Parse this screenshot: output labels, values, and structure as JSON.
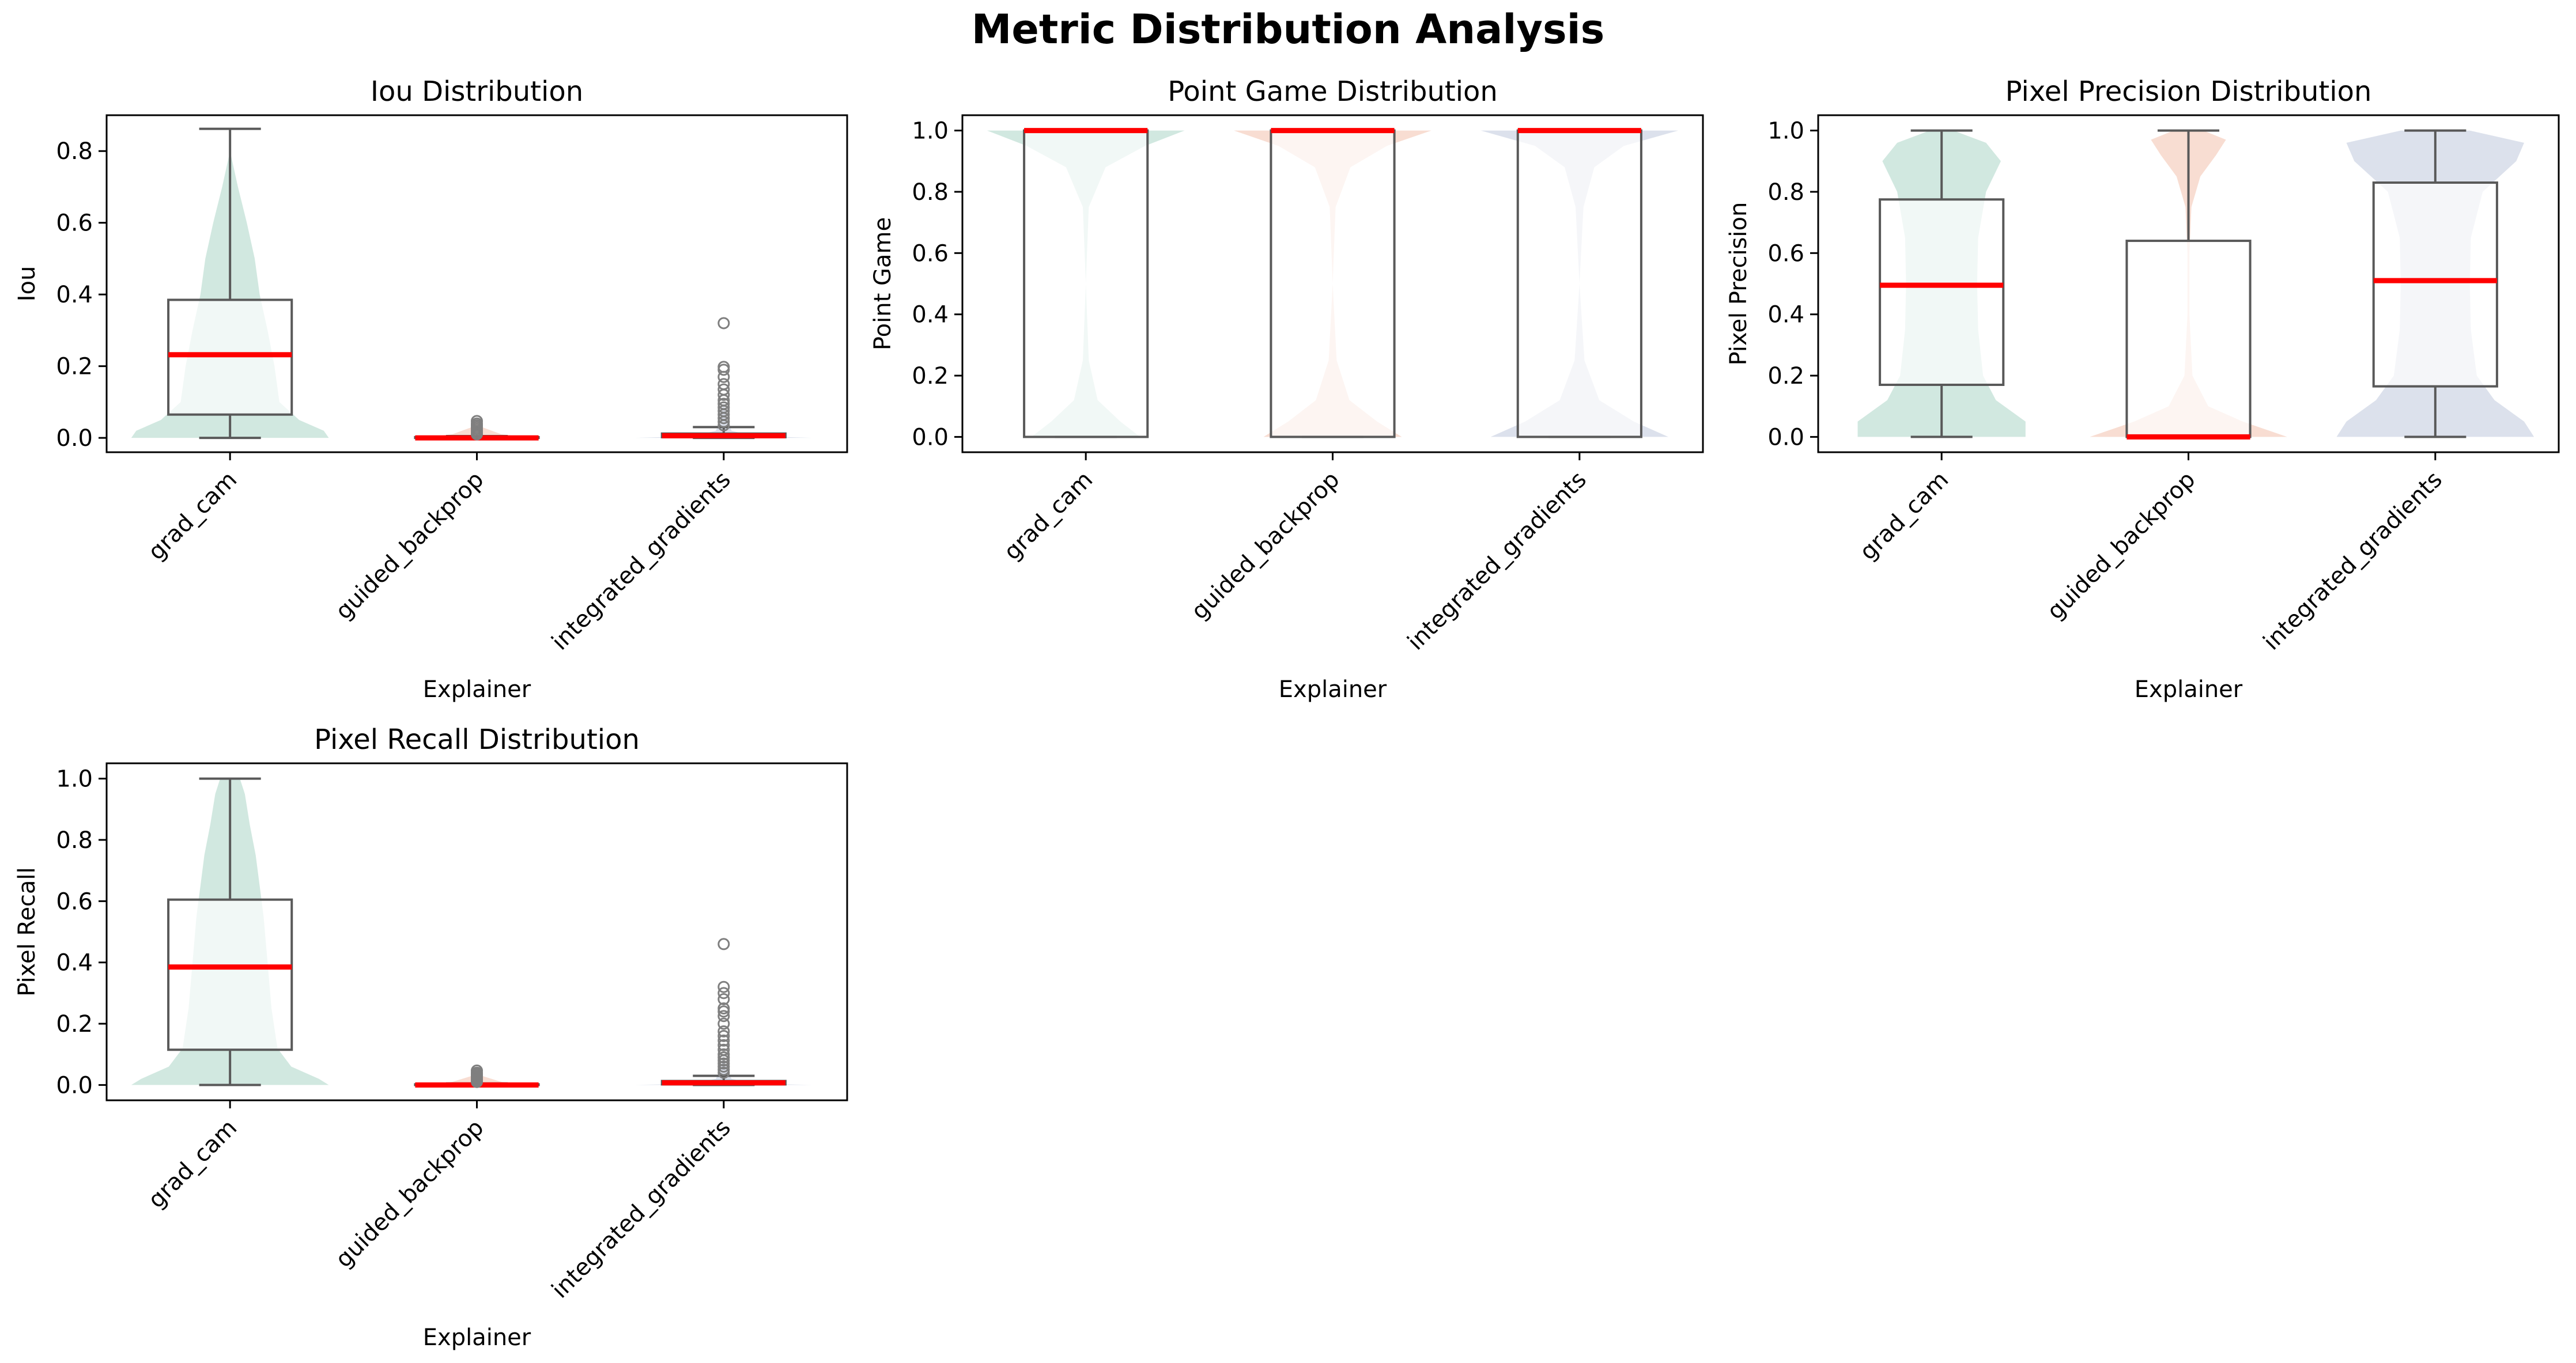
{
  "figure": {
    "title": "Metric Distribution Analysis"
  },
  "colors": {
    "violin": [
      "#b3d8cc",
      "#f4c6b4",
      "#c5cde0"
    ],
    "box_fill": "#ffffff",
    "box_edge": "#595959",
    "median": "#ff0000",
    "outlier": "#7f7f7f"
  },
  "chart_data": [
    {
      "type": "box",
      "title": "Iou Distribution",
      "xlabel": "Explainer",
      "ylabel": "Iou",
      "categories": [
        "grad_cam",
        "guided_backprop",
        "integrated_gradients"
      ],
      "ylim": [
        -0.04,
        0.9
      ],
      "yticks": [
        0.0,
        0.2,
        0.4,
        0.6,
        0.8
      ],
      "tick_labels": [
        "0.0",
        "0.2",
        "0.4",
        "0.6",
        "0.8"
      ],
      "boxes": [
        {
          "whisker_low": 0.0,
          "q1": 0.065,
          "median": 0.232,
          "q3": 0.385,
          "whisker_high": 0.862,
          "outliers": []
        },
        {
          "whisker_low": 0.0,
          "q1": 0.0,
          "median": 0.0,
          "q3": 0.002,
          "whisker_high": 0.005,
          "outliers": [
            0.01,
            0.015,
            0.02,
            0.025,
            0.03,
            0.035,
            0.04,
            0.047
          ]
        },
        {
          "whisker_low": 0.0,
          "q1": 0.002,
          "median": 0.006,
          "q3": 0.012,
          "whisker_high": 0.03,
          "outliers": [
            0.035,
            0.045,
            0.055,
            0.065,
            0.075,
            0.085,
            0.095,
            0.105,
            0.12,
            0.135,
            0.15,
            0.17,
            0.19,
            0.198,
            0.32
          ]
        }
      ],
      "violins": [
        {
          "y": [
            0.0,
            0.02,
            0.05,
            0.1,
            0.2,
            0.3,
            0.4,
            0.5,
            0.6,
            0.7,
            0.8
          ],
          "w": [
            1.0,
            0.95,
            0.7,
            0.5,
            0.45,
            0.38,
            0.3,
            0.25,
            0.17,
            0.08,
            0.0
          ]
        },
        {
          "y": [
            0.0,
            0.01,
            0.03,
            0.05
          ],
          "w": [
            0.55,
            0.25,
            0.05,
            0.0
          ]
        },
        {
          "y": [
            0.0,
            0.005,
            0.02,
            0.05,
            0.1
          ],
          "w": [
            0.9,
            0.3,
            0.08,
            0.03,
            0.0
          ]
        }
      ]
    },
    {
      "type": "box",
      "title": "Point Game Distribution",
      "xlabel": "Explainer",
      "ylabel": "Point Game",
      "categories": [
        "grad_cam",
        "guided_backprop",
        "integrated_gradients"
      ],
      "ylim": [
        -0.05,
        1.05
      ],
      "yticks": [
        0.0,
        0.2,
        0.4,
        0.6,
        0.8,
        1.0
      ],
      "tick_labels": [
        "0.0",
        "0.2",
        "0.4",
        "0.6",
        "0.8",
        "1.0"
      ],
      "boxes": [
        {
          "whisker_low": 0.0,
          "q1": 0.0,
          "median": 1.0,
          "q3": 1.0,
          "whisker_high": 1.0,
          "outliers": []
        },
        {
          "whisker_low": 0.0,
          "q1": 0.0,
          "median": 1.0,
          "q3": 1.0,
          "whisker_high": 1.0,
          "outliers": []
        },
        {
          "whisker_low": 0.0,
          "q1": 0.0,
          "median": 1.0,
          "q3": 1.0,
          "whisker_high": 1.0,
          "outliers": []
        }
      ],
      "violins": [
        {
          "y": [
            0.0,
            0.05,
            0.12,
            0.25,
            0.5,
            0.75,
            0.88,
            0.95,
            1.0
          ],
          "w": [
            0.55,
            0.35,
            0.12,
            0.03,
            0.0,
            0.03,
            0.2,
            0.6,
            1.0
          ]
        },
        {
          "y": [
            0.0,
            0.05,
            0.12,
            0.25,
            0.5,
            0.75,
            0.88,
            0.95,
            1.0
          ],
          "w": [
            0.7,
            0.45,
            0.17,
            0.04,
            0.0,
            0.03,
            0.18,
            0.55,
            1.0
          ]
        },
        {
          "y": [
            0.0,
            0.05,
            0.12,
            0.25,
            0.5,
            0.75,
            0.88,
            0.95,
            1.0
          ],
          "w": [
            0.9,
            0.55,
            0.2,
            0.05,
            0.0,
            0.04,
            0.15,
            0.45,
            1.0
          ]
        }
      ]
    },
    {
      "type": "box",
      "title": "Pixel Precision Distribution",
      "xlabel": "Explainer",
      "ylabel": "Pixel Precision",
      "categories": [
        "grad_cam",
        "guided_backprop",
        "integrated_gradients"
      ],
      "ylim": [
        -0.05,
        1.05
      ],
      "yticks": [
        0.0,
        0.2,
        0.4,
        0.6,
        0.8,
        1.0
      ],
      "tick_labels": [
        "0.0",
        "0.2",
        "0.4",
        "0.6",
        "0.8",
        "1.0"
      ],
      "boxes": [
        {
          "whisker_low": 0.0,
          "q1": 0.17,
          "median": 0.495,
          "q3": 0.775,
          "whisker_high": 1.0,
          "outliers": []
        },
        {
          "whisker_low": 0.0,
          "q1": 0.0,
          "median": 0.0,
          "q3": 0.64,
          "whisker_high": 1.0,
          "outliers": []
        },
        {
          "whisker_low": 0.0,
          "q1": 0.165,
          "median": 0.51,
          "q3": 0.83,
          "whisker_high": 1.0,
          "outliers": []
        }
      ],
      "violins": [
        {
          "y": [
            0.0,
            0.05,
            0.12,
            0.2,
            0.35,
            0.5,
            0.65,
            0.8,
            0.9,
            0.96,
            1.0
          ],
          "w": [
            0.85,
            0.85,
            0.55,
            0.42,
            0.37,
            0.36,
            0.37,
            0.45,
            0.6,
            0.45,
            0.12
          ]
        },
        {
          "y": [
            0.0,
            0.05,
            0.1,
            0.2,
            0.4,
            0.6,
            0.75,
            0.85,
            0.92,
            0.97,
            1.0
          ],
          "w": [
            1.0,
            0.55,
            0.2,
            0.04,
            0.01,
            0.01,
            0.03,
            0.12,
            0.28,
            0.38,
            0.15
          ]
        },
        {
          "y": [
            0.0,
            0.05,
            0.12,
            0.2,
            0.35,
            0.5,
            0.65,
            0.8,
            0.9,
            0.96,
            1.0
          ],
          "w": [
            1.0,
            0.9,
            0.6,
            0.42,
            0.36,
            0.35,
            0.36,
            0.48,
            0.82,
            0.9,
            0.35
          ]
        }
      ]
    },
    {
      "type": "box",
      "title": "Pixel Recall Distribution",
      "xlabel": "Explainer",
      "ylabel": "Pixel Recall",
      "categories": [
        "grad_cam",
        "guided_backprop",
        "integrated_gradients"
      ],
      "ylim": [
        -0.05,
        1.05
      ],
      "yticks": [
        0.0,
        0.2,
        0.4,
        0.6,
        0.8,
        1.0
      ],
      "tick_labels": [
        "0.0",
        "0.2",
        "0.4",
        "0.6",
        "0.8",
        "1.0"
      ],
      "boxes": [
        {
          "whisker_low": 0.0,
          "q1": 0.115,
          "median": 0.385,
          "q3": 0.605,
          "whisker_high": 1.0,
          "outliers": []
        },
        {
          "whisker_low": 0.0,
          "q1": 0.0,
          "median": 0.0,
          "q3": 0.002,
          "whisker_high": 0.005,
          "outliers": [
            0.01,
            0.015,
            0.02,
            0.025,
            0.03,
            0.035,
            0.04,
            0.047
          ]
        },
        {
          "whisker_low": 0.0,
          "q1": 0.002,
          "median": 0.007,
          "q3": 0.013,
          "whisker_high": 0.03,
          "outliers": [
            0.04,
            0.05,
            0.06,
            0.07,
            0.08,
            0.09,
            0.1,
            0.115,
            0.13,
            0.145,
            0.16,
            0.175,
            0.2,
            0.225,
            0.24,
            0.25,
            0.28,
            0.3,
            0.32,
            0.46
          ]
        }
      ],
      "violins": [
        {
          "y": [
            0.0,
            0.02,
            0.06,
            0.12,
            0.25,
            0.4,
            0.55,
            0.65,
            0.75,
            0.85,
            0.95,
            1.0
          ],
          "w": [
            1.0,
            0.9,
            0.62,
            0.48,
            0.42,
            0.38,
            0.34,
            0.3,
            0.26,
            0.2,
            0.15,
            0.1
          ]
        },
        {
          "y": [
            0.0,
            0.01,
            0.03,
            0.05
          ],
          "w": [
            0.55,
            0.25,
            0.05,
            0.0
          ]
        },
        {
          "y": [
            0.0,
            0.005,
            0.02,
            0.05,
            0.1
          ],
          "w": [
            0.9,
            0.3,
            0.08,
            0.03,
            0.0
          ]
        }
      ]
    }
  ]
}
